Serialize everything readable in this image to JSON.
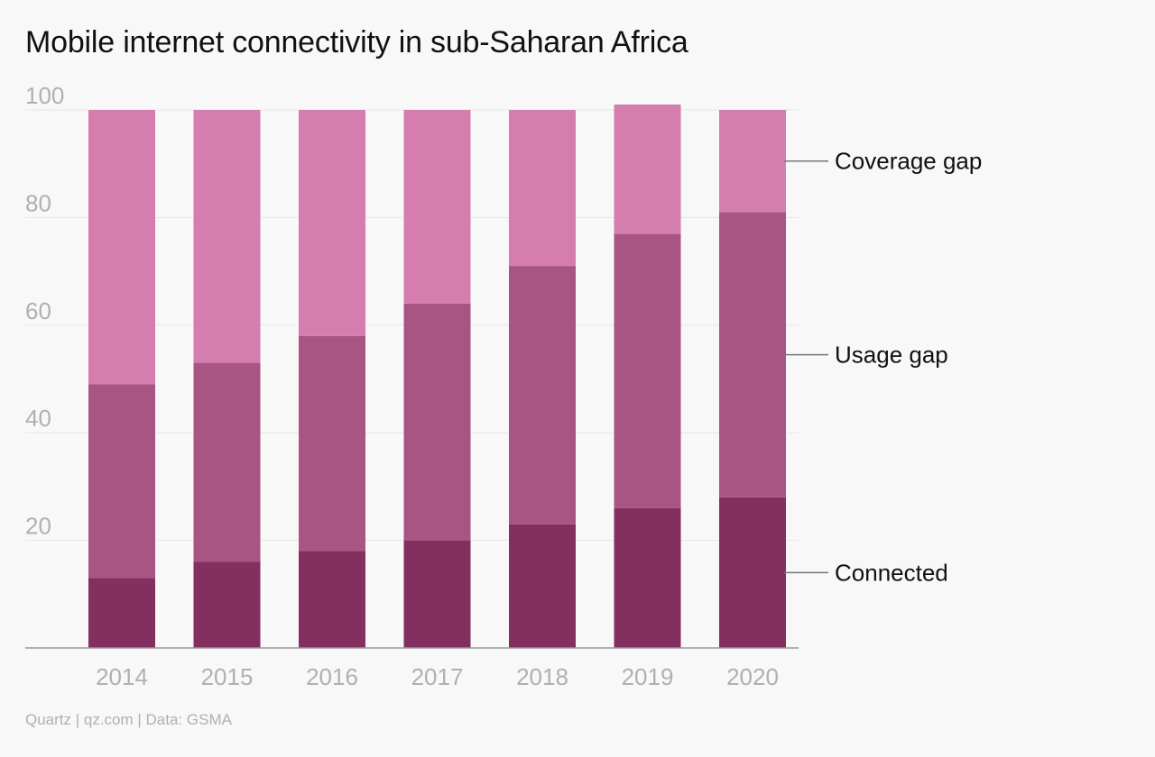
{
  "chart_data": {
    "type": "bar",
    "stacked": true,
    "title": "Mobile internet connectivity in sub-Saharan Africa",
    "categories": [
      "2014",
      "2015",
      "2016",
      "2017",
      "2018",
      "2019",
      "2020"
    ],
    "series": [
      {
        "name": "Connected",
        "values": [
          13,
          16,
          18,
          20,
          23,
          26,
          28
        ],
        "color": "#832f60"
      },
      {
        "name": "Usage gap",
        "values": [
          36,
          37,
          40,
          44,
          48,
          51,
          53
        ],
        "color": "#a85584"
      },
      {
        "name": "Coverage gap",
        "values": [
          51,
          47,
          42,
          36,
          29,
          24,
          19
        ],
        "color": "#d57daf"
      }
    ],
    "ylim": [
      0,
      100
    ],
    "yticks": [
      20,
      40,
      60,
      80,
      100
    ],
    "grid": true,
    "legend": "right, labels beside last bar"
  },
  "footer": {
    "source": "Quartz | qz.com | Data: GSMA"
  }
}
